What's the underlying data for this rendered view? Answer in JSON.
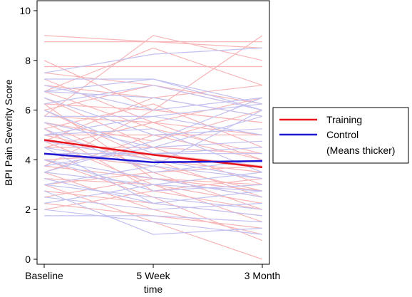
{
  "chart_data": {
    "type": "line",
    "x_categories": [
      "Baseline",
      "5 Week",
      "3 Month"
    ],
    "xlabel": "time",
    "ylabel": "BPI Pain Severity Score",
    "ylim": [
      0,
      10
    ],
    "yticks": [
      0,
      2,
      4,
      6,
      8,
      10
    ],
    "grid": false,
    "legend_position": "right",
    "legend": {
      "items": [
        {
          "label": "Training",
          "color": "#e8141c"
        },
        {
          "label": "Control",
          "color": "#1f16d2"
        }
      ],
      "note": "(Means thicker)"
    },
    "series_means": [
      {
        "name": "Training",
        "color": "#e8141c",
        "values": [
          4.8,
          4.2,
          3.7
        ]
      },
      {
        "name": "Control",
        "color": "#1f16d2",
        "values": [
          4.25,
          3.9,
          3.95
        ]
      }
    ],
    "individual_colors": {
      "training": "#f7b5b8",
      "control": "#c2c0f0"
    },
    "individual_training": [
      [
        9.0,
        8.75,
        8.5
      ],
      [
        8.75,
        8.75,
        8.75
      ],
      [
        7.75,
        7.75,
        7.75
      ],
      [
        8.0,
        6.0,
        5.5
      ],
      [
        7.5,
        7.0,
        6.0
      ],
      [
        7.25,
        5.5,
        4.0
      ],
      [
        7.0,
        6.5,
        7.0
      ],
      [
        6.75,
        5.25,
        4.25
      ],
      [
        6.5,
        4.5,
        3.0
      ],
      [
        6.25,
        6.0,
        5.5
      ],
      [
        6.0,
        4.0,
        2.5
      ],
      [
        6.0,
        7.0,
        6.25
      ],
      [
        5.75,
        5.5,
        5.0
      ],
      [
        5.5,
        4.75,
        6.0
      ],
      [
        5.5,
        3.5,
        2.0
      ],
      [
        5.25,
        6.25,
        4.5
      ],
      [
        5.0,
        5.0,
        5.0
      ],
      [
        5.0,
        4.0,
        3.5
      ],
      [
        4.75,
        3.0,
        1.5
      ],
      [
        4.5,
        4.5,
        4.25
      ],
      [
        4.5,
        5.5,
        6.5
      ],
      [
        4.25,
        3.75,
        2.75
      ],
      [
        4.0,
        2.5,
        0.75
      ],
      [
        4.0,
        4.25,
        3.75
      ],
      [
        3.75,
        3.25,
        3.0
      ],
      [
        3.5,
        5.0,
        4.0
      ],
      [
        3.5,
        2.0,
        1.0
      ],
      [
        3.25,
        3.0,
        2.25
      ],
      [
        3.0,
        3.5,
        3.75
      ],
      [
        3.0,
        1.5,
        0.0
      ],
      [
        2.75,
        2.25,
        1.75
      ],
      [
        2.5,
        3.25,
        2.5
      ],
      [
        2.25,
        1.75,
        1.25
      ],
      [
        2.0,
        2.75,
        2.0
      ],
      [
        6.75,
        8.5,
        7.0
      ],
      [
        5.75,
        9.0,
        8.0
      ],
      [
        6.25,
        3.25,
        2.75
      ],
      [
        4.75,
        6.5,
        5.75
      ],
      [
        3.75,
        6.0,
        9.0
      ],
      [
        5.25,
        2.75,
        3.25
      ]
    ],
    "individual_control": [
      [
        7.5,
        8.25,
        8.5
      ],
      [
        7.25,
        7.25,
        6.25
      ],
      [
        7.0,
        6.0,
        6.5
      ],
      [
        6.75,
        6.5,
        5.75
      ],
      [
        6.5,
        5.0,
        5.25
      ],
      [
        6.25,
        7.0,
        6.0
      ],
      [
        6.0,
        4.25,
        4.5
      ],
      [
        5.75,
        5.75,
        5.0
      ],
      [
        5.5,
        4.5,
        5.75
      ],
      [
        5.25,
        3.5,
        4.0
      ],
      [
        5.0,
        5.25,
        3.5
      ],
      [
        4.75,
        4.0,
        3.25
      ],
      [
        4.5,
        3.75,
        6.0
      ],
      [
        4.25,
        4.25,
        4.25
      ],
      [
        4.0,
        2.75,
        3.0
      ],
      [
        4.0,
        3.25,
        2.5
      ],
      [
        3.75,
        4.5,
        4.75
      ],
      [
        3.5,
        3.0,
        2.75
      ],
      [
        3.25,
        2.25,
        1.75
      ],
      [
        3.0,
        3.75,
        3.25
      ],
      [
        3.0,
        2.5,
        2.0
      ],
      [
        2.75,
        1.0,
        1.25
      ],
      [
        2.5,
        2.0,
        2.25
      ],
      [
        2.25,
        3.0,
        3.5
      ],
      [
        2.0,
        1.5,
        1.0
      ],
      [
        1.75,
        1.75,
        1.5
      ],
      [
        5.0,
        5.75,
        6.25
      ],
      [
        3.5,
        4.75,
        6.5
      ],
      [
        6.75,
        7.25,
        6.0
      ],
      [
        4.5,
        2.25,
        2.75
      ]
    ]
  }
}
